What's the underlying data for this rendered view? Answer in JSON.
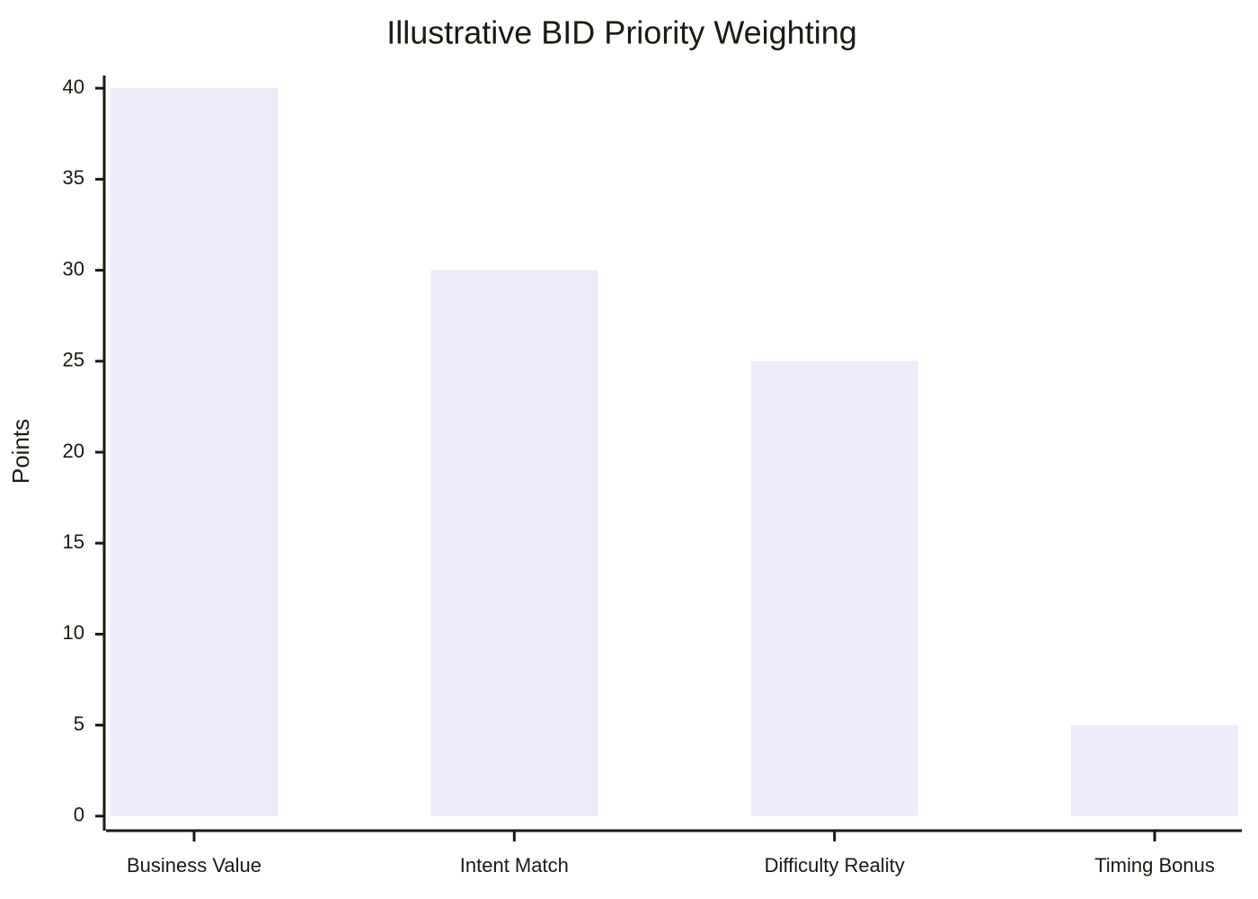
{
  "chart_data": {
    "type": "bar",
    "title": "Illustrative BID Priority Weighting",
    "y_label": "Points",
    "categories": [
      "Business Value",
      "Intent Match",
      "Difficulty Reality",
      "Timing Bonus"
    ],
    "values": [
      40,
      30,
      25,
      5
    ],
    "color": "#ebebfb",
    "ylim": [
      -0.8,
      40.7
    ],
    "yticks": [
      0,
      5,
      10,
      15,
      20,
      25,
      30,
      35,
      40
    ],
    "grid": false
  }
}
